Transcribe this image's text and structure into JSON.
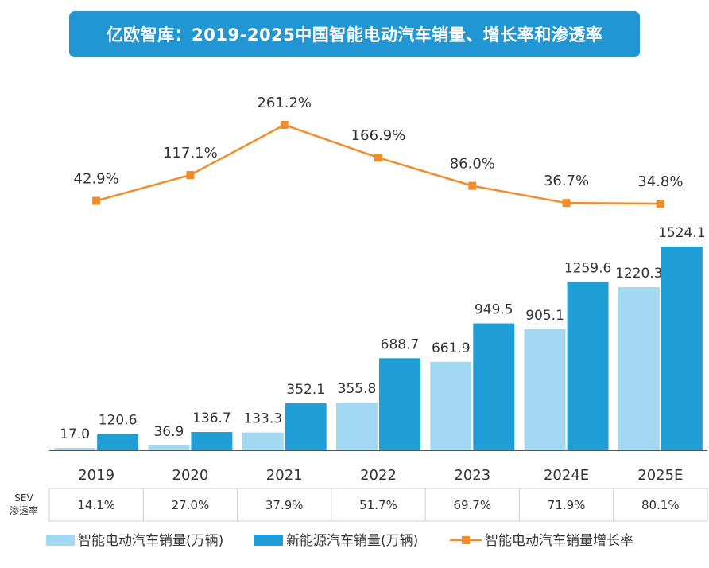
{
  "title": "亿欧智库：2019-2025中国智能电动汽车销量、增长率和渗透率",
  "colors": {
    "title_bg": "#2196d3",
    "sev_bar": "#a3d8f2",
    "nev_bar": "#1f9fd6",
    "growth_line": "#f28c28",
    "table_border": "#cfcfcf",
    "axis": "#555555"
  },
  "chart_data": {
    "type": "bar",
    "categories": [
      "2019",
      "2020",
      "2021",
      "2022",
      "2023",
      "2024E",
      "2025E"
    ],
    "series": [
      {
        "name": "智能电动汽车销量(万辆)",
        "values": [
          17.0,
          36.9,
          133.3,
          355.8,
          661.9,
          905.1,
          1220.3
        ],
        "labels": [
          "17.0",
          "36.9",
          "133.3",
          "355.8",
          "661.9",
          "905.1",
          "1220.3"
        ]
      },
      {
        "name": "新能源汽车销量(万辆)",
        "values": [
          120.6,
          136.7,
          352.1,
          688.7,
          949.5,
          1259.6,
          1524.1
        ],
        "labels": [
          "120.6",
          "136.7",
          "352.1",
          "688.7",
          "949.5",
          "1259.6",
          "1524.1"
        ]
      }
    ],
    "line_series": {
      "name": "智能电动汽车销量增长率",
      "values": [
        42.9,
        117.1,
        261.2,
        166.9,
        86.0,
        36.7,
        34.8
      ],
      "labels": [
        "42.9%",
        "117.1%",
        "261.2%",
        "166.9%",
        "86.0%",
        "36.7%",
        "34.8%"
      ]
    },
    "table": {
      "row_label": "SEV\n渗透率",
      "values": [
        "14.1%",
        "27.0%",
        "37.9%",
        "51.7%",
        "69.7%",
        "71.9%",
        "80.1%"
      ]
    },
    "legend_position": "bottom",
    "grid": false
  }
}
